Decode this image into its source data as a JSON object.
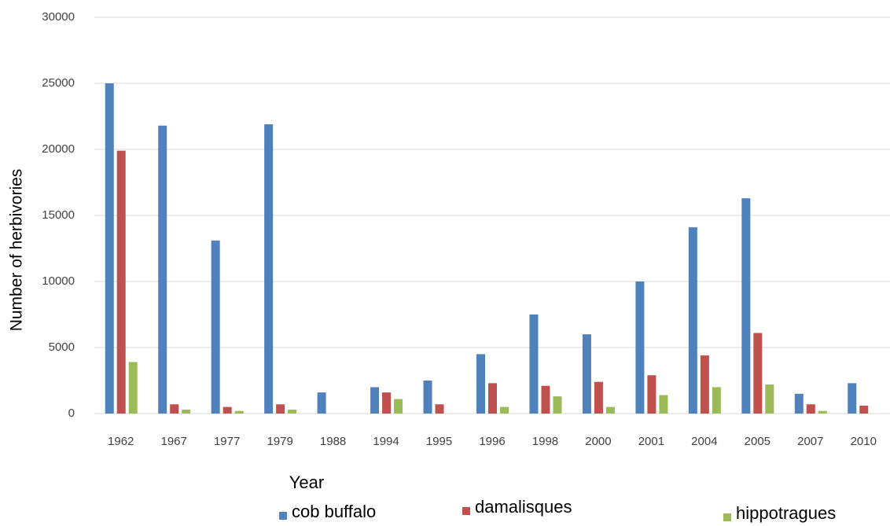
{
  "chart_data": {
    "type": "bar",
    "x_label": "Year",
    "y_label": "Number of herbivories",
    "categories": [
      "1962",
      "1967",
      "1977",
      "1979",
      "1988",
      "1994",
      "1995",
      "1996",
      "1998",
      "2000",
      "2001",
      "2004",
      "2005",
      "2007",
      "2010"
    ],
    "series": [
      {
        "name": "cob buffalo",
        "color": "#4f81bd",
        "values": [
          25000,
          21800,
          13100,
          21900,
          1600,
          2000,
          2500,
          4500,
          7500,
          6000,
          10000,
          14100,
          16300,
          1500,
          2300
        ]
      },
      {
        "name": "damalisques",
        "color": "#c0504d",
        "values": [
          19900,
          700,
          500,
          700,
          0,
          1600,
          700,
          2300,
          2100,
          2400,
          2900,
          4400,
          6100,
          700,
          600
        ]
      },
      {
        "name": "hippotragues",
        "color": "#9bbb59",
        "values": [
          3900,
          300,
          200,
          300,
          0,
          1100,
          0,
          500,
          1300,
          500,
          1400,
          2000,
          2200,
          200,
          0
        ]
      }
    ],
    "ylim": [
      0,
      30000
    ],
    "yticks": [
      0,
      5000,
      10000,
      15000,
      20000,
      25000,
      30000
    ],
    "grid": true,
    "legend": "bottom"
  }
}
